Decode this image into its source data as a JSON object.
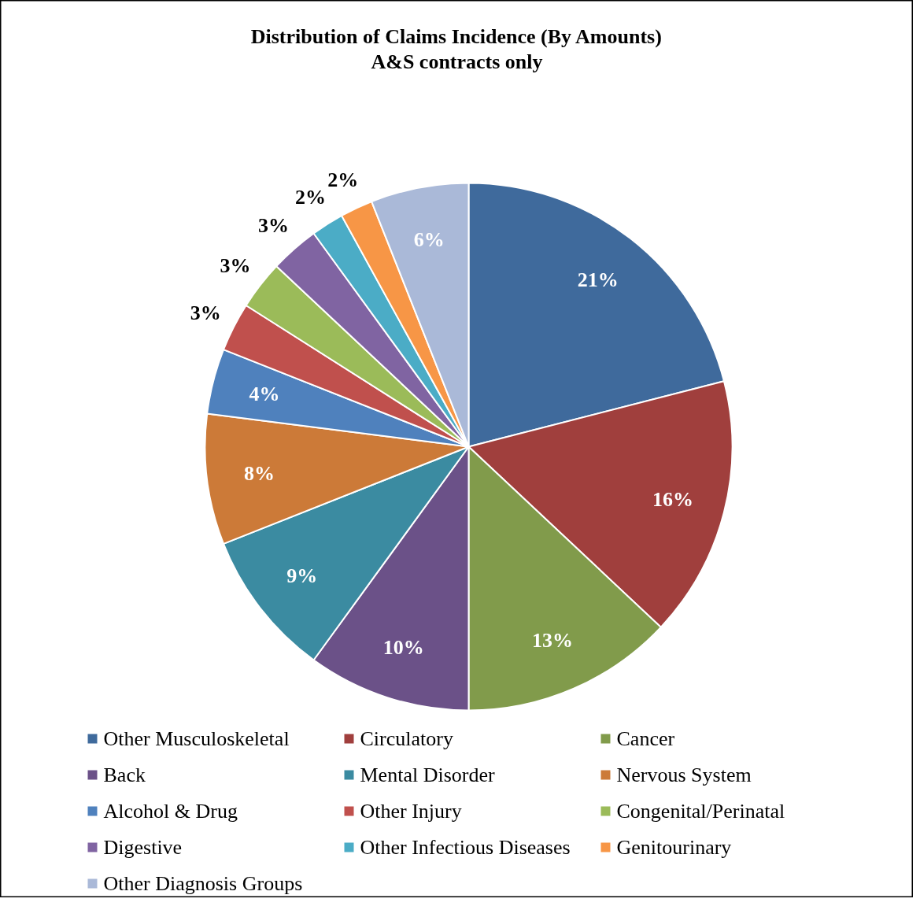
{
  "chart_data": {
    "type": "pie",
    "title": "Distribution of Claims Incidence (By Amounts)",
    "subtitle": "A&S contracts only",
    "categories": [
      "Other Musculoskeletal",
      "Circulatory",
      "Cancer",
      "Back",
      "Mental Disorder",
      "Nervous System",
      "Alcohol & Drug",
      "Other Injury",
      "Congenital/Perinatal",
      "Digestive",
      "Other Infectious Diseases",
      "Genitourinary",
      "Other Diagnosis Groups"
    ],
    "values": [
      21,
      16,
      13,
      10,
      9,
      8,
      4,
      3,
      3,
      3,
      2,
      2,
      6
    ],
    "colors": [
      "#3f6a9c",
      "#a03f3d",
      "#819b4b",
      "#6b5188",
      "#3b8ba1",
      "#cc7a38",
      "#4f81bd",
      "#c0504d",
      "#9bbb59",
      "#8064a2",
      "#4bacc6",
      "#f79646",
      "#aab9d8"
    ],
    "value_labels": [
      "21%",
      "16%",
      "13%",
      "10%",
      "9%",
      "8%",
      "4%",
      "3%",
      "3%",
      "3%",
      "2%",
      "2%",
      "6%"
    ],
    "legend": "bottom"
  }
}
